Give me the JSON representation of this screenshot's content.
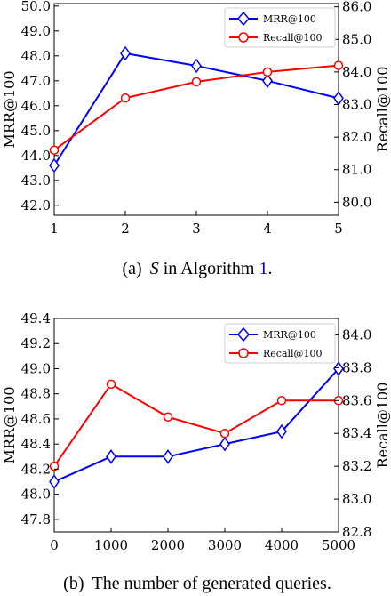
{
  "chart_data": [
    {
      "type": "line",
      "caption": {
        "prefix": "(a)",
        "var": "S",
        "middle": " in Algorithm ",
        "ref": "1",
        "suffix": "."
      },
      "x": [
        1,
        2,
        3,
        4,
        5
      ],
      "xlim": [
        1,
        5
      ],
      "xticks": [
        1,
        2,
        3,
        4,
        5
      ],
      "ylabel": "MRR@100",
      "ylim": [
        41.6,
        50.1
      ],
      "yticks": [
        42.0,
        43.0,
        44.0,
        45.0,
        46.0,
        47.0,
        48.0,
        49.0,
        50.0
      ],
      "y2label": "Recall@100",
      "y2lim": [
        79.6,
        86.1
      ],
      "y2ticks": [
        80.0,
        81.0,
        82.0,
        83.0,
        84.0,
        85.0,
        86.0
      ],
      "legend_position": "top-right",
      "series": [
        {
          "name": "MRR@100",
          "axis": "left",
          "marker": "diamond",
          "color": "#0000ff",
          "values": [
            43.6,
            48.1,
            47.6,
            47.0,
            46.3
          ]
        },
        {
          "name": "Recall@100",
          "axis": "right",
          "marker": "circle",
          "color": "#ff0000",
          "values": [
            81.6,
            83.2,
            83.7,
            84.0,
            84.2
          ]
        }
      ]
    },
    {
      "type": "line",
      "caption": {
        "prefix": "(b)",
        "text": "The number of generated queries."
      },
      "x": [
        0,
        1000,
        2000,
        3000,
        4000,
        5000
      ],
      "xlim": [
        0,
        5000
      ],
      "xticks": [
        0,
        1000,
        2000,
        3000,
        4000,
        5000
      ],
      "ylabel": "MRR@100",
      "ylim": [
        47.7,
        49.4
      ],
      "yticks": [
        47.8,
        48.0,
        48.2,
        48.4,
        48.6,
        48.8,
        49.0,
        49.2,
        49.4
      ],
      "y2label": "Recall@100",
      "y2lim": [
        82.8,
        84.1
      ],
      "y2ticks": [
        82.8,
        83.0,
        83.2,
        83.4,
        83.6,
        83.8,
        84.0
      ],
      "legend_position": "top-right",
      "series": [
        {
          "name": "MRR@100",
          "axis": "left",
          "marker": "diamond",
          "color": "#0000ff",
          "values": [
            48.1,
            48.3,
            48.3,
            48.4,
            48.5,
            49.0
          ]
        },
        {
          "name": "Recall@100",
          "axis": "right",
          "marker": "circle",
          "color": "#ff0000",
          "values": [
            83.2,
            83.7,
            83.5,
            83.4,
            83.6,
            83.6
          ]
        }
      ]
    }
  ]
}
